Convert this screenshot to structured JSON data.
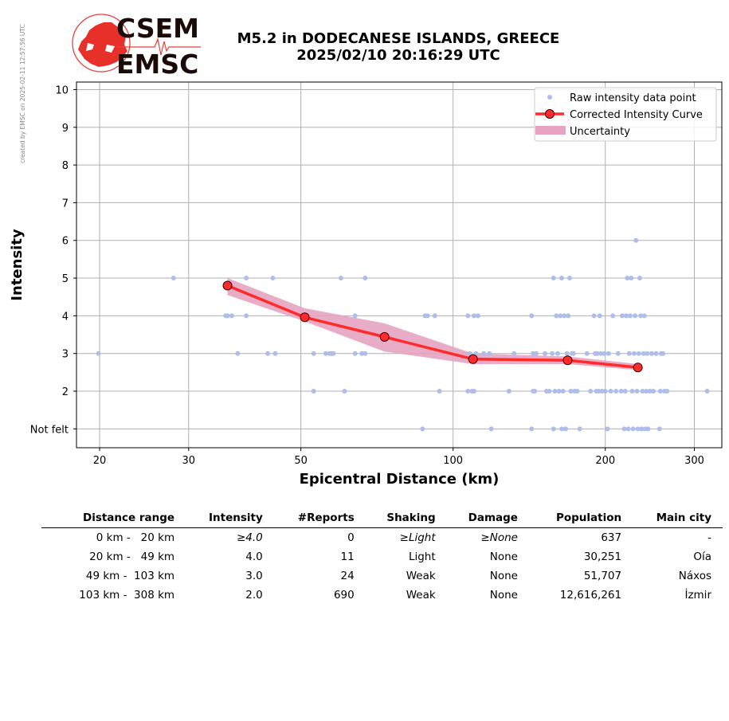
{
  "credit": "created by EMSC on 2025-02-11 12:57:56 UTC",
  "logo": {
    "line1": "CSEM",
    "line2": "EMSC"
  },
  "title": {
    "line1": "M5.2 in DODECANESE ISLANDS, GREECE",
    "line2": "2025/02/10 20:16:29 UTC"
  },
  "chart_data": {
    "type": "scatter",
    "xlabel": "Epicentral Distance (km)",
    "ylabel": "Intensity",
    "x_scale": "log",
    "xlim": [
      18,
      340
    ],
    "ylim": [
      0.5,
      10.2
    ],
    "x_ticks": [
      20,
      30,
      50,
      100,
      200,
      300
    ],
    "y_ticks": [
      1,
      2,
      3,
      4,
      5,
      6,
      7,
      8,
      9,
      10
    ],
    "y_tick_labels": [
      "Not felt",
      "2",
      "3",
      "4",
      "5",
      "6",
      "7",
      "8",
      "9",
      "10"
    ],
    "grid": true,
    "legend_position": "top-right",
    "legend": [
      "Raw intensity data point",
      "Corrected Intensity Curve",
      "Uncertainty"
    ],
    "colors": {
      "raw": "#aebde9",
      "curve": "#ff2a2a",
      "band": "#e7a3c1",
      "grid": "#b0b0b0"
    },
    "series": [
      {
        "name": "Raw intensity data point",
        "points": [
          [
            19.9,
            3
          ],
          [
            28,
            5
          ],
          [
            35.5,
            4
          ],
          [
            35.8,
            4
          ],
          [
            36.5,
            4
          ],
          [
            37.5,
            3
          ],
          [
            39,
            5
          ],
          [
            39,
            4
          ],
          [
            43,
            3
          ],
          [
            44,
            5
          ],
          [
            44.5,
            3
          ],
          [
            53,
            3
          ],
          [
            53,
            2
          ],
          [
            56,
            3
          ],
          [
            57,
            3
          ],
          [
            57.5,
            3
          ],
          [
            58,
            3
          ],
          [
            60,
            5
          ],
          [
            61,
            2
          ],
          [
            64,
            4
          ],
          [
            64,
            3
          ],
          [
            66,
            3
          ],
          [
            67,
            3
          ],
          [
            67,
            5
          ],
          [
            87,
            1
          ],
          [
            88,
            4
          ],
          [
            89,
            4
          ],
          [
            92,
            4
          ],
          [
            94,
            2
          ],
          [
            107,
            4
          ],
          [
            107,
            2
          ],
          [
            108,
            3
          ],
          [
            109,
            2
          ],
          [
            110,
            4
          ],
          [
            110,
            2
          ],
          [
            111,
            3
          ],
          [
            112,
            4
          ],
          [
            115,
            3
          ],
          [
            118,
            3
          ],
          [
            119,
            1
          ],
          [
            129,
            2
          ],
          [
            132,
            3
          ],
          [
            143,
            1
          ],
          [
            143,
            4
          ],
          [
            144,
            2
          ],
          [
            144,
            3
          ],
          [
            145,
            2
          ],
          [
            146,
            3
          ],
          [
            152,
            3
          ],
          [
            153,
            2
          ],
          [
            155,
            2
          ],
          [
            157,
            3
          ],
          [
            158,
            1
          ],
          [
            158,
            5
          ],
          [
            159,
            2
          ],
          [
            160,
            4
          ],
          [
            161,
            3
          ],
          [
            162,
            2
          ],
          [
            163,
            4
          ],
          [
            164,
            1
          ],
          [
            164,
            5
          ],
          [
            165,
            2
          ],
          [
            166,
            4
          ],
          [
            167,
            1
          ],
          [
            168,
            3
          ],
          [
            169,
            4
          ],
          [
            170,
            5
          ],
          [
            171,
            2
          ],
          [
            172,
            3
          ],
          [
            173,
            3
          ],
          [
            174,
            2
          ],
          [
            176,
            2
          ],
          [
            178,
            1
          ],
          [
            184,
            3
          ],
          [
            187,
            2
          ],
          [
            190,
            4
          ],
          [
            191,
            3
          ],
          [
            192,
            2
          ],
          [
            193,
            3
          ],
          [
            194,
            2
          ],
          [
            195,
            4
          ],
          [
            196,
            3
          ],
          [
            197,
            2
          ],
          [
            199,
            3
          ],
          [
            200,
            2
          ],
          [
            202,
            1
          ],
          [
            203,
            3
          ],
          [
            205,
            2
          ],
          [
            207,
            4
          ],
          [
            210,
            2
          ],
          [
            212,
            3
          ],
          [
            215,
            2
          ],
          [
            216,
            4
          ],
          [
            218,
            1
          ],
          [
            219,
            2
          ],
          [
            220,
            4
          ],
          [
            221,
            5
          ],
          [
            222,
            1
          ],
          [
            223,
            3
          ],
          [
            224,
            4
          ],
          [
            225,
            5
          ],
          [
            226,
            2
          ],
          [
            227,
            1
          ],
          [
            228,
            3
          ],
          [
            229,
            4
          ],
          [
            230,
            6
          ],
          [
            231,
            2
          ],
          [
            232,
            1
          ],
          [
            233,
            3
          ],
          [
            234,
            5
          ],
          [
            235,
            4
          ],
          [
            236,
            1
          ],
          [
            237,
            2
          ],
          [
            238,
            3
          ],
          [
            239,
            4
          ],
          [
            240,
            1
          ],
          [
            241,
            2
          ],
          [
            242,
            3
          ],
          [
            243,
            1
          ],
          [
            245,
            2
          ],
          [
            247,
            3
          ],
          [
            249,
            2
          ],
          [
            252,
            3
          ],
          [
            256,
            1
          ],
          [
            257,
            2
          ],
          [
            258,
            3
          ],
          [
            260,
            3
          ],
          [
            262,
            2
          ],
          [
            265,
            2
          ],
          [
            318,
            2
          ]
        ]
      },
      {
        "name": "Corrected Intensity Curve",
        "points": [
          [
            35.8,
            4.8
          ],
          [
            50.9,
            3.96
          ],
          [
            73.2,
            3.44
          ],
          [
            109.5,
            2.85
          ],
          [
            168.5,
            2.82
          ],
          [
            232,
            2.63
          ]
        ]
      },
      {
        "name": "Uncertainty",
        "upper": [
          [
            35.8,
            5.0
          ],
          [
            50.9,
            4.2
          ],
          [
            73.2,
            3.8
          ],
          [
            109.5,
            3.0
          ],
          [
            168.5,
            2.92
          ],
          [
            232,
            2.72
          ]
        ],
        "lower": [
          [
            35.8,
            4.55
          ],
          [
            50.9,
            3.85
          ],
          [
            73.2,
            3.05
          ],
          [
            109.5,
            2.72
          ],
          [
            168.5,
            2.72
          ],
          [
            232,
            2.56
          ]
        ]
      }
    ]
  },
  "table": {
    "headers": [
      "Distance range",
      "Intensity",
      "#Reports",
      "Shaking",
      "Damage",
      "Population",
      "Main city"
    ],
    "rows": [
      {
        "range": "0 km -   20 km",
        "intensity": "≥4.0",
        "reports": "0",
        "shaking": "≥Light",
        "damage": "≥None",
        "population": "637",
        "city": "-"
      },
      {
        "range": "20 km -   49 km",
        "intensity": "4.0",
        "reports": "11",
        "shaking": "Light",
        "damage": "None",
        "population": "30,251",
        "city": "Oía"
      },
      {
        "range": "49 km -  103 km",
        "intensity": "3.0",
        "reports": "24",
        "shaking": "Weak",
        "damage": "None",
        "population": "51,707",
        "city": "Náxos"
      },
      {
        "range": "103 km -  308 km",
        "intensity": "2.0",
        "reports": "690",
        "shaking": "Weak",
        "damage": "None",
        "population": "12,616,261",
        "city": "İzmir"
      }
    ]
  }
}
